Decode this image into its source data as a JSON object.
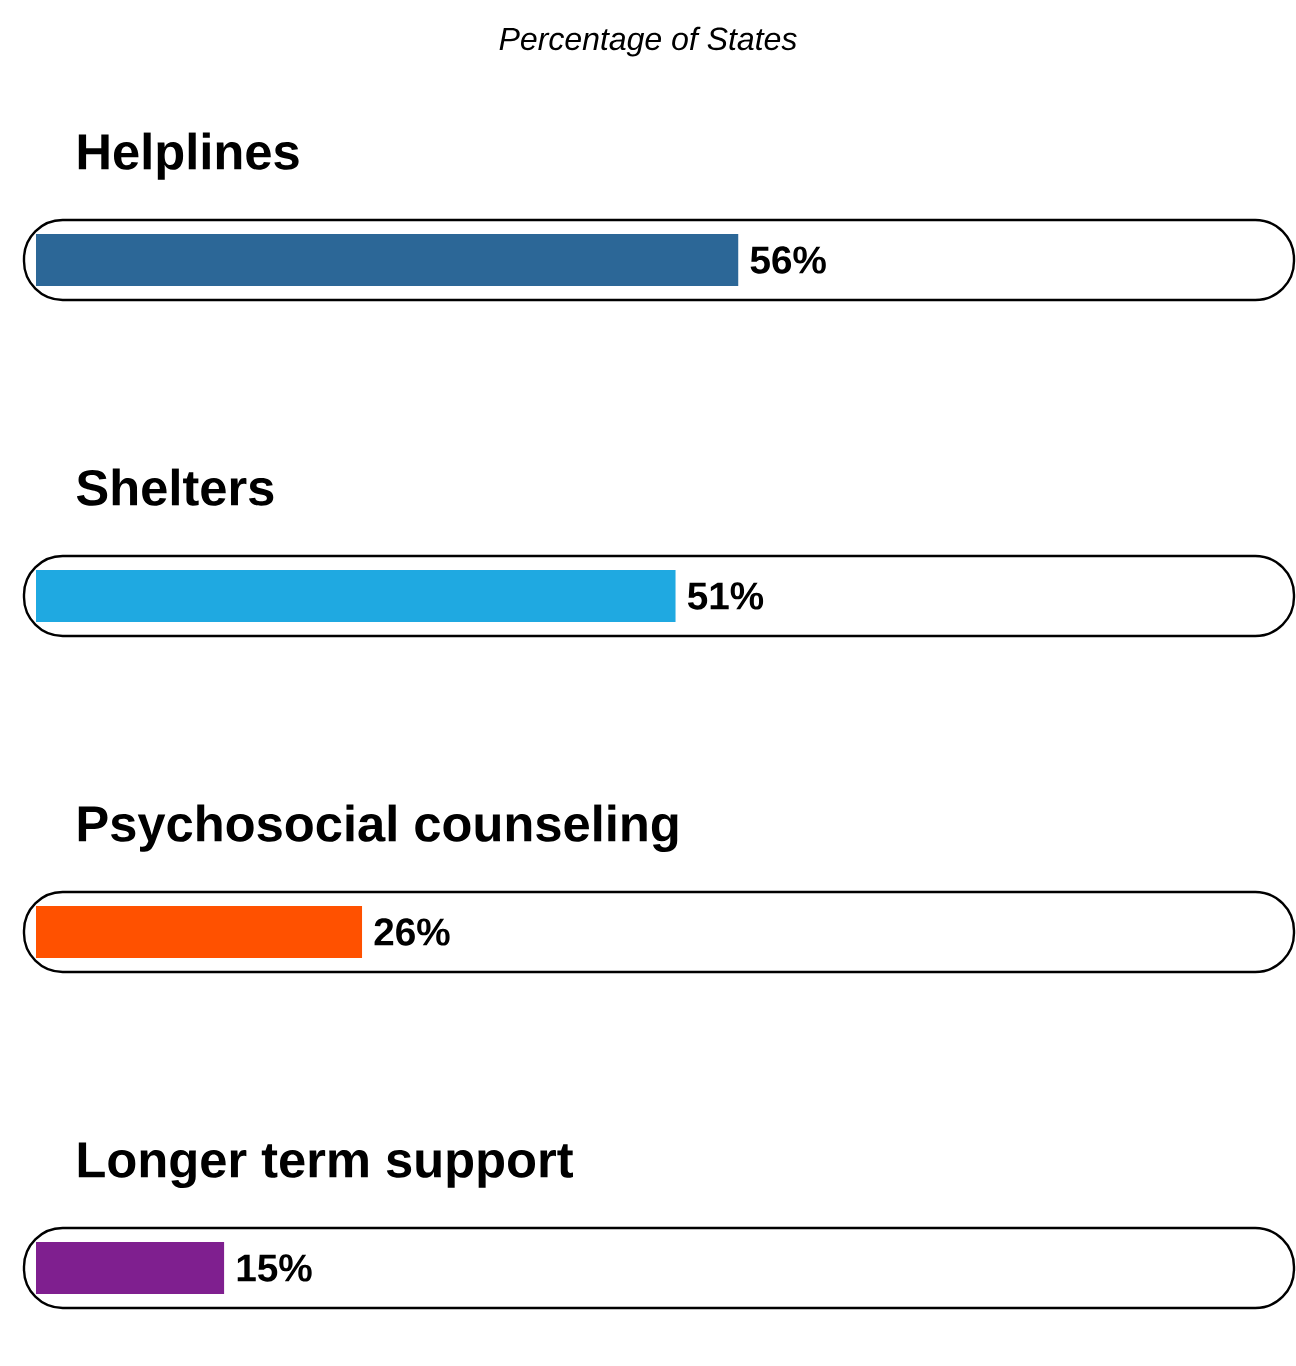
{
  "chart_data": {
    "type": "bar",
    "orientation": "horizontal",
    "title": "Percentage of States",
    "categories": [
      "Helplines",
      "Shelters",
      "Psychosocial counseling",
      "Longer term support"
    ],
    "values": [
      56,
      51,
      26,
      15
    ],
    "colors": [
      "#2c6797",
      "#1fa9e1",
      "#ff5100",
      "#7f1f8f"
    ],
    "value_labels": [
      "56%",
      "51%",
      "26%",
      "15%"
    ]
  }
}
